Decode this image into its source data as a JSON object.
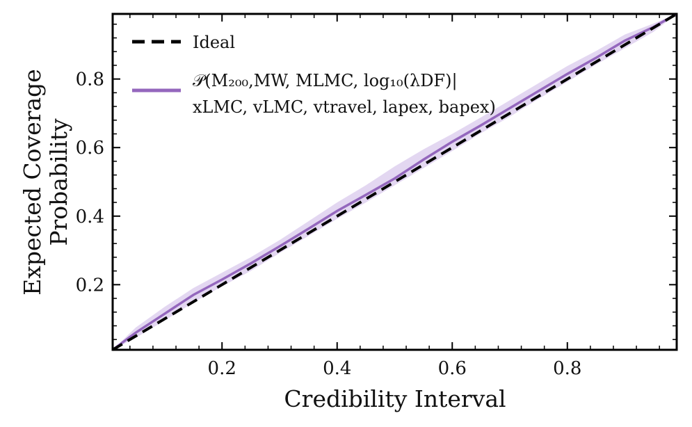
{
  "chart_data": {
    "type": "line",
    "title": "",
    "xlabel": "Credibility Interval",
    "ylabel_lines": [
      "Expected Coverage",
      "Probability"
    ],
    "xlim": [
      0.01,
      0.99
    ],
    "ylim": [
      0.01,
      0.99
    ],
    "xticks": [
      0.2,
      0.4,
      0.6,
      0.8
    ],
    "yticks": [
      0.2,
      0.4,
      0.6,
      0.8
    ],
    "xtick_labels": [
      "0.2",
      "0.4",
      "0.6",
      "0.8"
    ],
    "ytick_labels": [
      "0.2",
      "0.4",
      "0.6",
      "0.8"
    ],
    "legend_position": "top-left",
    "series": [
      {
        "name": "Ideal",
        "style": "dashed",
        "color": "#000000",
        "x": [
          0.01,
          0.99
        ],
        "y": [
          0.01,
          0.99
        ]
      },
      {
        "name": "P(M200,MW, MLMC, log10(λDF) | xLMC, vLMC, vtravel, lapex, bapex)",
        "legend_line1": "𝒫(M₂₀₀,MW, MLMC, log₁₀(λDF)|",
        "legend_line2": "xLMC, vLMC, vtravel, lapex, bapex)",
        "style": "solid",
        "color": "#9467bd",
        "band_color": "#d9c9ec",
        "x": [
          0.01,
          0.05,
          0.1,
          0.15,
          0.2,
          0.25,
          0.3,
          0.35,
          0.4,
          0.45,
          0.5,
          0.55,
          0.6,
          0.65,
          0.7,
          0.75,
          0.8,
          0.85,
          0.9,
          0.95,
          0.99
        ],
        "y": [
          0.01,
          0.06,
          0.115,
          0.17,
          0.215,
          0.262,
          0.312,
          0.363,
          0.415,
          0.462,
          0.51,
          0.565,
          0.617,
          0.665,
          0.715,
          0.765,
          0.815,
          0.862,
          0.912,
          0.952,
          0.99
        ],
        "y_lower": [
          0.01,
          0.045,
          0.095,
          0.148,
          0.195,
          0.24,
          0.292,
          0.342,
          0.392,
          0.44,
          0.49,
          0.54,
          0.59,
          0.642,
          0.69,
          0.742,
          0.792,
          0.842,
          0.89,
          0.938,
          0.99
        ],
        "y_upper": [
          0.01,
          0.075,
          0.135,
          0.19,
          0.235,
          0.28,
          0.33,
          0.385,
          0.44,
          0.49,
          0.545,
          0.595,
          0.64,
          0.688,
          0.738,
          0.788,
          0.838,
          0.882,
          0.93,
          0.962,
          0.99
        ]
      }
    ]
  }
}
